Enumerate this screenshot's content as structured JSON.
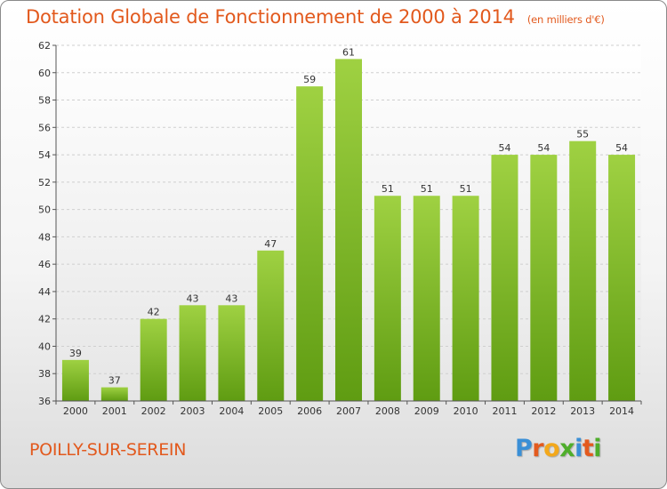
{
  "header": {
    "title": "Dotation Globale de Fonctionnement de 2000 à 2014",
    "unit": "(en milliers d'€)"
  },
  "footer": {
    "commune": "POILLY-SUR-SEREIN",
    "logo_letters": [
      "P",
      "r",
      "o",
      "x",
      "i",
      "t",
      "i"
    ],
    "logo_colors": [
      "#3a8fd6",
      "#e35a1e",
      "#f3a81b",
      "#4fae2b",
      "#3a8fd6",
      "#e35a1e",
      "#4fae2b"
    ]
  },
  "chart_data": {
    "type": "bar",
    "categories": [
      "2000",
      "2001",
      "2002",
      "2003",
      "2004",
      "2005",
      "2006",
      "2007",
      "2008",
      "2009",
      "2010",
      "2011",
      "2012",
      "2013",
      "2014"
    ],
    "values": [
      39,
      37,
      42,
      43,
      43,
      47,
      59,
      61,
      51,
      51,
      51,
      54,
      54,
      55,
      54
    ],
    "title": "Dotation Globale de Fonctionnement de 2000 à 2014",
    "ylim": [
      36,
      62
    ],
    "yticks": [
      "36",
      "38",
      "40",
      "42",
      "44",
      "46",
      "48",
      "50",
      "52",
      "54",
      "56",
      "58",
      "60",
      "62"
    ],
    "grid": true,
    "bar_color": "#7fbc2c"
  }
}
